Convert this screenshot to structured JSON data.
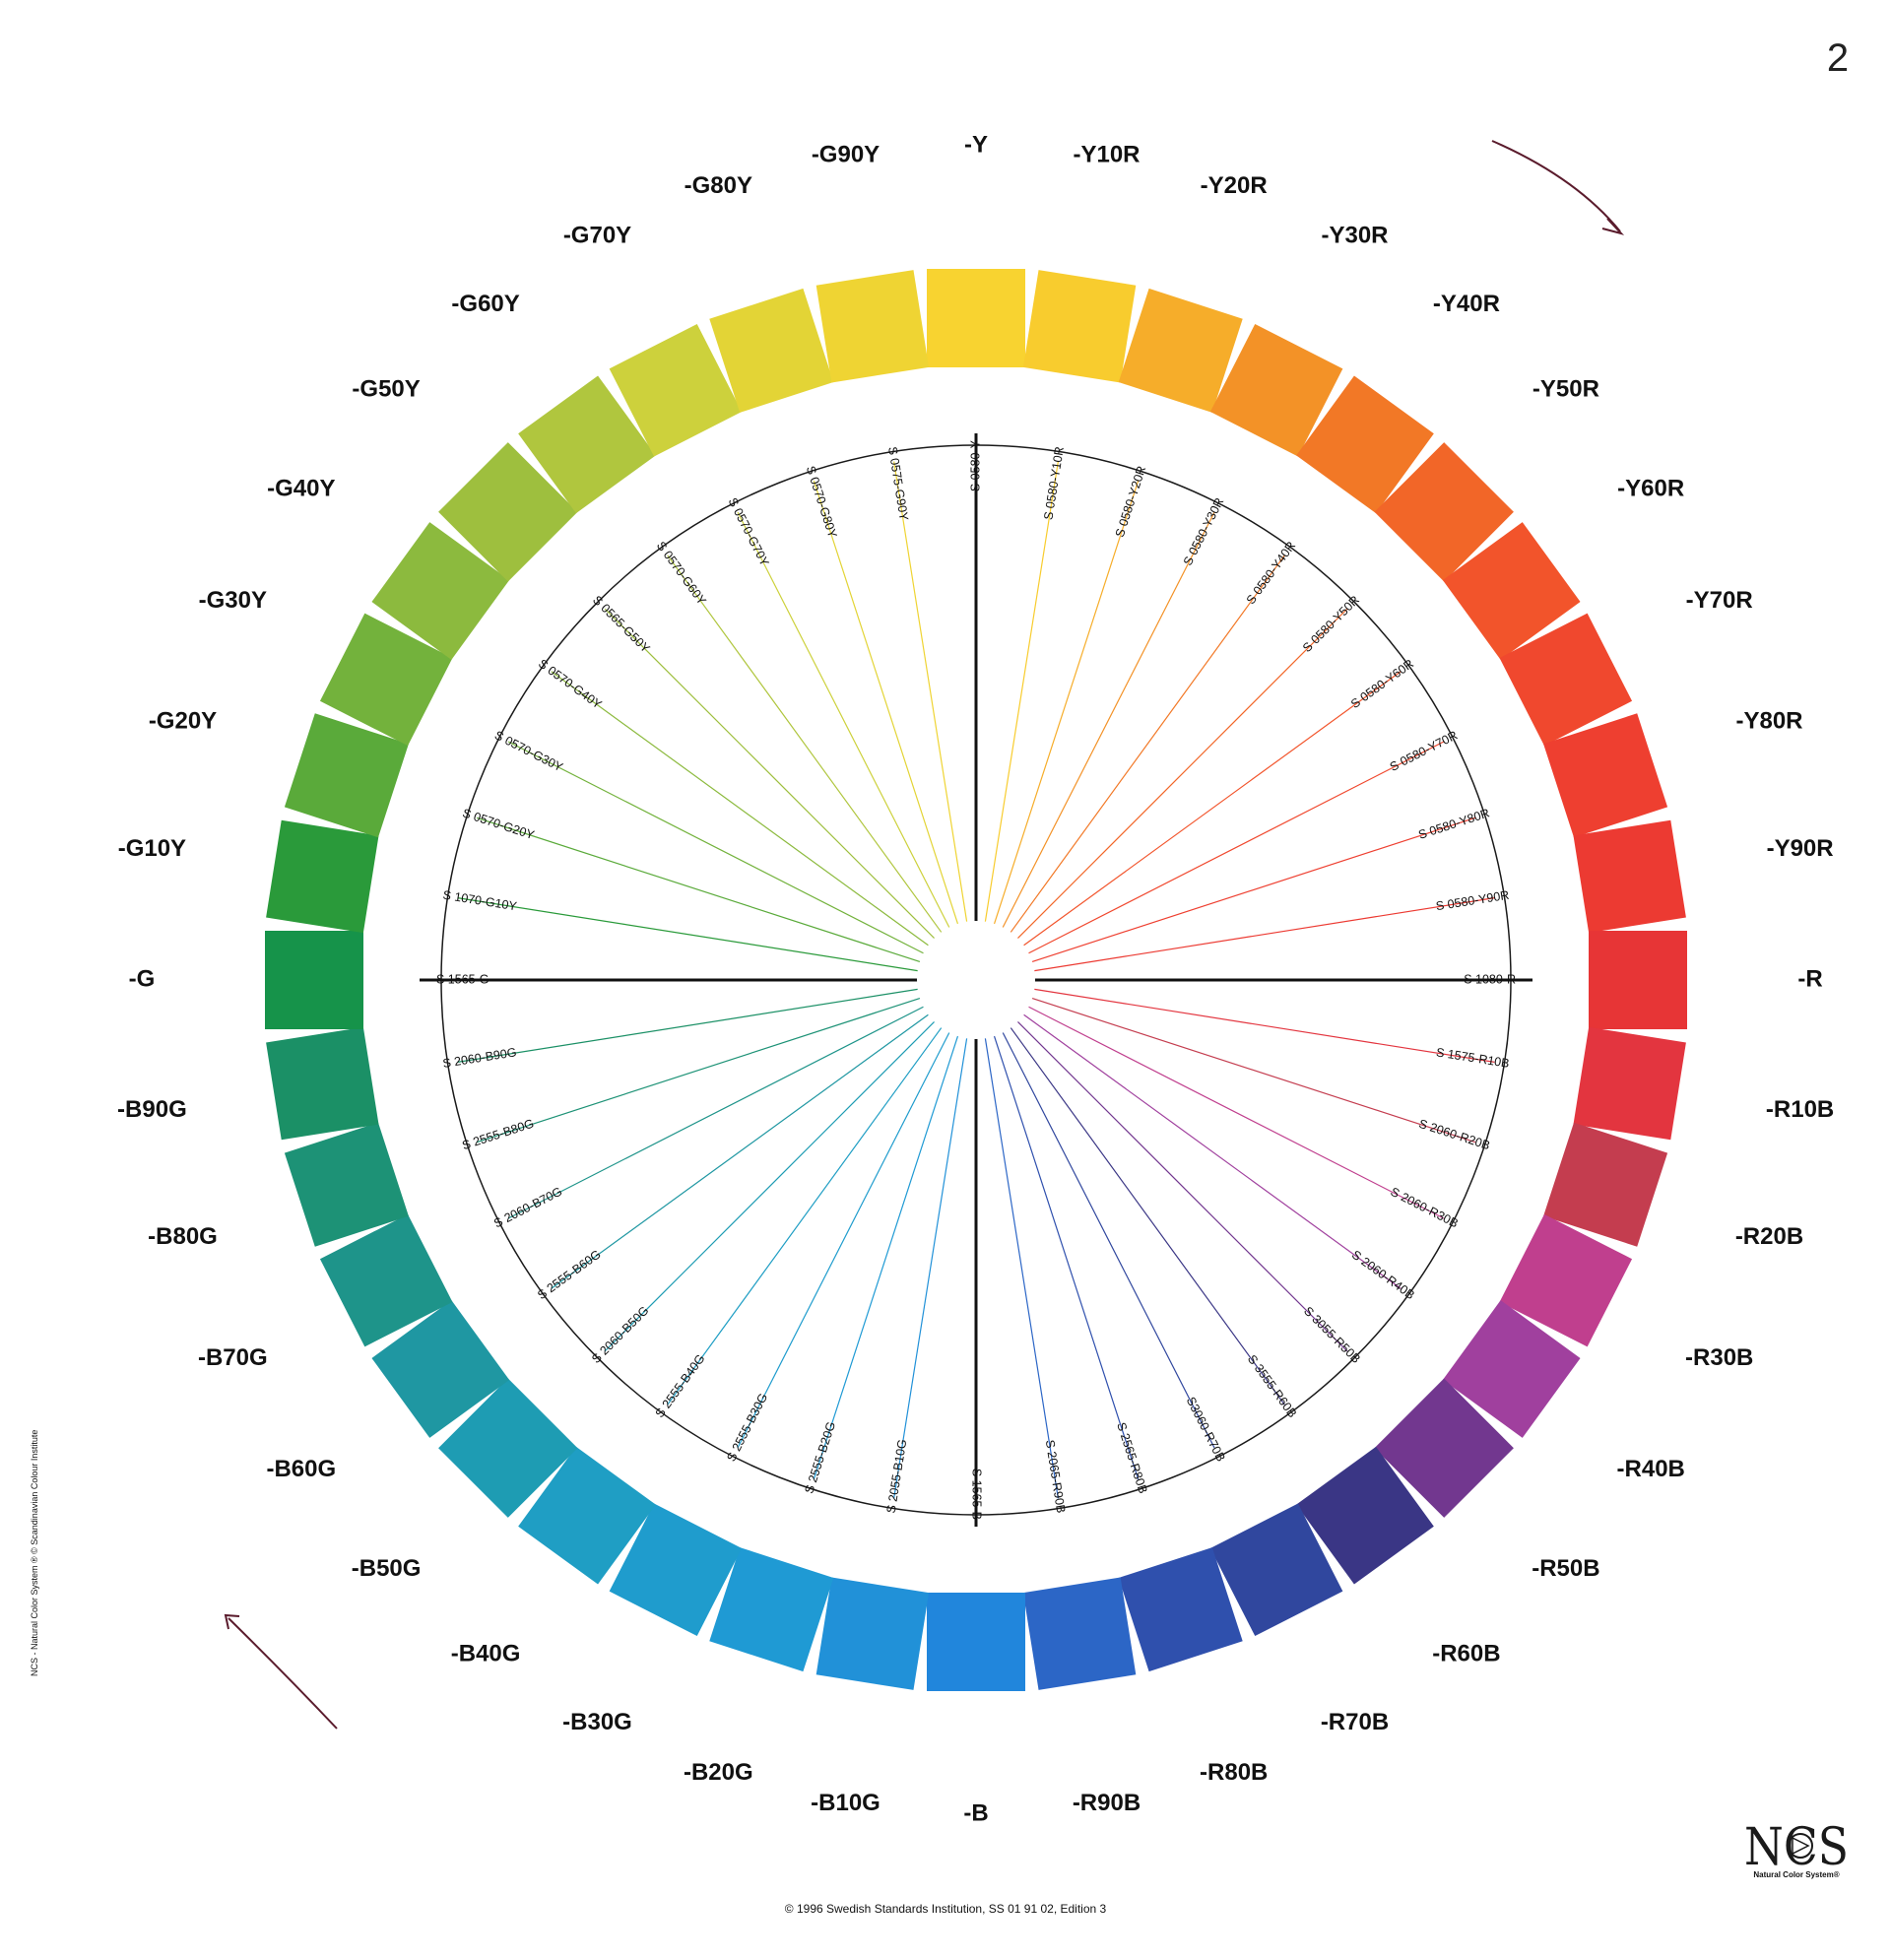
{
  "page_number": "2",
  "footer": "© 1996 Swedish Standards Institution, SS 01 91 02, Edition 3",
  "side_note": "NCS - Natural Color System   ® © Scandinavian Colour Institute",
  "logo": {
    "text": "NCS",
    "subtitle": "Natural Color System®"
  },
  "hues": [
    {
      "label": "-Y",
      "code": "S 0580-Y",
      "color": "#f8d330"
    },
    {
      "label": "-Y10R",
      "code": "S 0580-Y10R",
      "color": "#f8cc2e"
    },
    {
      "label": "-Y20R",
      "code": "S 0580-Y20R",
      "color": "#f6ad2a"
    },
    {
      "label": "-Y30R",
      "code": "S 0580-Y30R",
      "color": "#f39227"
    },
    {
      "label": "-Y40R",
      "code": "S 0580-Y40R",
      "color": "#f27826"
    },
    {
      "label": "-Y50R",
      "code": "S 0580-Y50R",
      "color": "#f26628"
    },
    {
      "label": "-Y60R",
      "code": "S 0580-Y60R",
      "color": "#f2542b"
    },
    {
      "label": "-Y70R",
      "code": "S 0580-Y70R",
      "color": "#f0482e"
    },
    {
      "label": "-Y80R",
      "code": "S 0580-Y80R",
      "color": "#ee3f30"
    },
    {
      "label": "-Y90R",
      "code": "S 0580-Y90R",
      "color": "#ec3a32"
    },
    {
      "label": "-R",
      "code": "S 1080-R",
      "color": "#e73536"
    },
    {
      "label": "-R10B",
      "code": "S 1575-R10B",
      "color": "#e3353f"
    },
    {
      "label": "-R20B",
      "code": "S 2060-R20B",
      "color": "#c43d4f"
    },
    {
      "label": "-R30B",
      "code": "S 2060-R30B",
      "color": "#c03f8e"
    },
    {
      "label": "-R40B",
      "code": "S 2060-R40B",
      "color": "#a0409e"
    },
    {
      "label": "-R50B",
      "code": "S 3055-R50B",
      "color": "#72378f"
    },
    {
      "label": "-R60B",
      "code": "S 3555-R60B",
      "color": "#3a3685"
    },
    {
      "label": "-R70B",
      "code": "S3060-R70B",
      "color": "#30479e"
    },
    {
      "label": "-R80B",
      "code": "S 2565-R80B",
      "color": "#2f50ad"
    },
    {
      "label": "-R90B",
      "code": "S 2065-R90B",
      "color": "#2c66c6"
    },
    {
      "label": "-B",
      "code": "S 1565-B",
      "color": "#2186dc"
    },
    {
      "label": "-B10G",
      "code": "S 2055-B10G",
      "color": "#2191d8"
    },
    {
      "label": "-B20G",
      "code": "S 2555-B20G",
      "color": "#1f9ad4"
    },
    {
      "label": "-B30G",
      "code": "S 2555-B30G",
      "color": "#1f9ccd"
    },
    {
      "label": "-B40G",
      "code": "S 2555-B40G",
      "color": "#1f9ec4"
    },
    {
      "label": "-B50G",
      "code": "S 2060-B50G",
      "color": "#1e9cb3"
    },
    {
      "label": "-B60G",
      "code": "S 2555-B60G",
      "color": "#1f97a2"
    },
    {
      "label": "-B70G",
      "code": "S 2060-B70G",
      "color": "#1e948a"
    },
    {
      "label": "-B80G",
      "code": "S 2555-B80G",
      "color": "#1d9276"
    },
    {
      "label": "-B90G",
      "code": "S 2060-B90G",
      "color": "#1b9066"
    },
    {
      "label": "-G",
      "code": "S 1565-G",
      "color": "#16934a"
    },
    {
      "label": "-G10Y",
      "code": "S 1070-G10Y",
      "color": "#2a9a3a"
    },
    {
      "label": "-G20Y",
      "code": "S 0570-G20Y",
      "color": "#5aaa3a"
    },
    {
      "label": "-G30Y",
      "code": "S 0570-G30Y",
      "color": "#73b23c"
    },
    {
      "label": "-G40Y",
      "code": "S 0570-G40Y",
      "color": "#8cba3e"
    },
    {
      "label": "-G50Y",
      "code": "S 0565-G50Y",
      "color": "#9ebf3e"
    },
    {
      "label": "-G60Y",
      "code": "S 0570-G60Y",
      "color": "#b0c63e"
    },
    {
      "label": "-G70Y",
      "code": "S 0570-G70Y",
      "color": "#cdd13c"
    },
    {
      "label": "-G80Y",
      "code": "S 0570-G80Y",
      "color": "#e3d436"
    },
    {
      "label": "-G90Y",
      "code": "S 0575-G90Y",
      "color": "#efd433"
    }
  ]
}
